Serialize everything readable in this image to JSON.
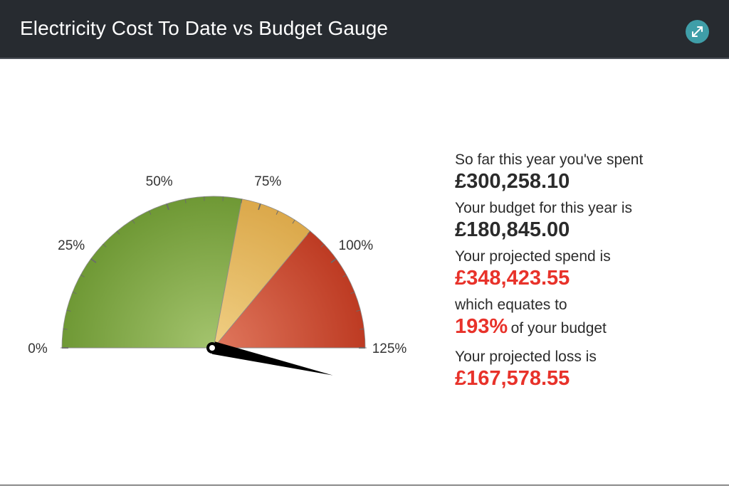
{
  "header": {
    "title": "Electricity Cost To Date vs Budget Gauge",
    "expand_icon": "expand-icon"
  },
  "colors": {
    "header_bg": "#272b30",
    "accent": "#3f9ea8",
    "green": "#7aa03f",
    "amber": "#e2b25a",
    "red": "#c9462e",
    "loss_text": "#e8322a"
  },
  "gauge": {
    "min_percent": 0,
    "max_percent": 125,
    "value_percent": 193,
    "bands": [
      {
        "from": 0,
        "to": 70,
        "color": "green"
      },
      {
        "from": 70,
        "to": 90,
        "color": "amber"
      },
      {
        "from": 90,
        "to": 125,
        "color": "red"
      }
    ],
    "labels": [
      "0%",
      "25%",
      "50%",
      "75%",
      "100%",
      "125%"
    ],
    "label_values": [
      0,
      25,
      50,
      75,
      100,
      125
    ],
    "needle": "needle-icon"
  },
  "stats": {
    "spent_label": "So far this year you've spent",
    "spent_value": "£300,258.10",
    "budget_label": "Your budget for this year is",
    "budget_value": "£180,845.00",
    "projected_label": "Your projected spend is",
    "projected_value": "£348,423.55",
    "equates_label": "which equates to",
    "equates_percent": "193%",
    "equates_suffix": "of your budget",
    "loss_label": "Your projected loss is",
    "loss_value": "£167,578.55"
  }
}
